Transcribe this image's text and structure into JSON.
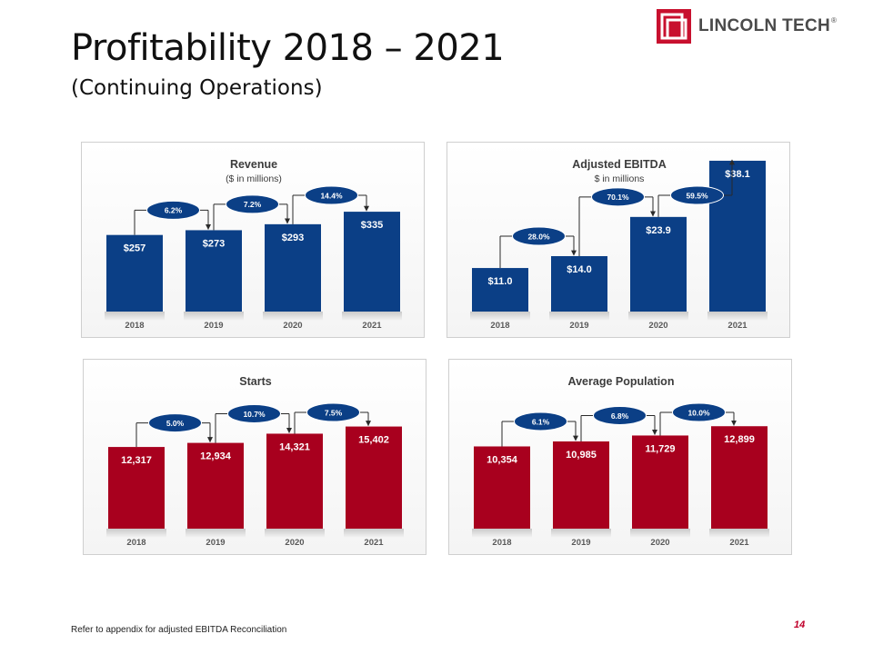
{
  "page": {
    "title": "Profitability 2018 – 2021",
    "subtitle": "(Continuing Operations)",
    "logo_text": "LINCOLN TECH",
    "logo_reg": "®",
    "footnote": "Refer to appendix for adjusted EBITDA Reconciliation",
    "page_number": "14"
  },
  "colors": {
    "navy": "#0b3f86",
    "crimson": "#a8001e",
    "logo_red": "#c8102e",
    "bubble": "#0b3f86"
  },
  "chart_data": [
    {
      "id": "revenue",
      "type": "bar",
      "title": "Revenue",
      "subtitle": "($ in millions)",
      "categories": [
        "2018",
        "2019",
        "2020",
        "2021"
      ],
      "values": [
        257,
        273,
        293,
        335
      ],
      "value_labels": [
        "$257",
        "$273",
        "$293",
        "$335"
      ],
      "growth_labels": [
        "6.2%",
        "7.2%",
        "14.4%"
      ],
      "color": "#0b3f86",
      "ylim": [
        0,
        445
      ]
    },
    {
      "id": "ebitda",
      "type": "bar",
      "title": "Adjusted EBITDA",
      "subtitle": "$ in millions",
      "categories": [
        "2018",
        "2019",
        "2020",
        "2021"
      ],
      "values": [
        11.0,
        14.0,
        23.9,
        38.1
      ],
      "value_labels": [
        "$11.0",
        "$14.0",
        "$23.9",
        "$38.1"
      ],
      "growth_labels": [
        "28.0%",
        "70.1%",
        "59.5%"
      ],
      "color": "#0b3f86",
      "ylim": [
        0,
        33.5
      ]
    },
    {
      "id": "starts",
      "type": "bar",
      "title": "Starts",
      "subtitle": "",
      "categories": [
        "2018",
        "2019",
        "2020",
        "2021"
      ],
      "values": [
        12317,
        12934,
        14321,
        15402
      ],
      "value_labels": [
        "12,317",
        "12,934",
        "14,321",
        "15,402"
      ],
      "growth_labels": [
        "5.0%",
        "10.7%",
        "7.5%"
      ],
      "color": "#a8001e",
      "ylim": [
        0,
        20000
      ]
    },
    {
      "id": "population",
      "type": "bar",
      "title": "Average Population",
      "subtitle": "",
      "categories": [
        "2018",
        "2019",
        "2020",
        "2021"
      ],
      "values": [
        10354,
        10985,
        11729,
        12899
      ],
      "value_labels": [
        "10,354",
        "10,985",
        "11,729",
        "12,899"
      ],
      "growth_labels": [
        "6.1%",
        "6.8%",
        "10.0%"
      ],
      "color": "#a8001e",
      "ylim": [
        0,
        16700
      ]
    }
  ]
}
